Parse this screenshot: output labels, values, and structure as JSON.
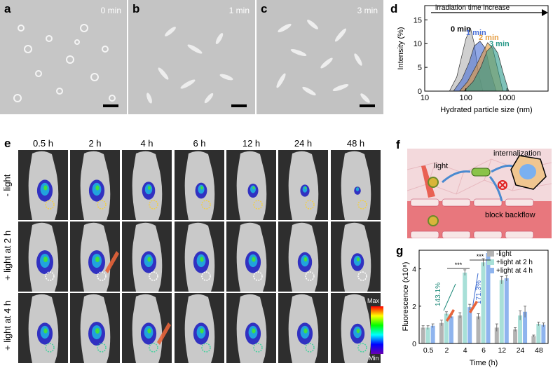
{
  "panel_a": {
    "label": "a",
    "time": "0 min"
  },
  "panel_b": {
    "label": "b",
    "time": "1 min"
  },
  "panel_c": {
    "label": "c",
    "time": "3 min"
  },
  "panel_d": {
    "label": "d",
    "arrow_text": "irradiation time increase",
    "chart_data": {
      "type": "area",
      "xlabel": "Hydrated particle size (nm)",
      "ylabel": "Intensity (%)",
      "xscale": "log",
      "xlim": [
        10,
        10000
      ],
      "ylim": [
        0,
        18
      ],
      "xticks": [
        "10",
        "100",
        "1000"
      ],
      "yticks": [
        "0",
        "5",
        "10",
        "15"
      ],
      "series": [
        {
          "name": "0 min",
          "color": "#b0b0b0",
          "x": [
            40,
            60,
            80,
            100,
            130,
            160,
            200,
            260
          ],
          "values": [
            0,
            3,
            7.5,
            11,
            13.2,
            10,
            4,
            0
          ]
        },
        {
          "name": "1 min",
          "color": "#4a6fd6",
          "x": [
            50,
            80,
            120,
            160,
            220,
            300,
            400,
            550
          ],
          "values": [
            0,
            2.5,
            6,
            9.5,
            10.5,
            9,
            4,
            0
          ]
        },
        {
          "name": "2 min",
          "color": "#e59a3c",
          "x": [
            70,
            110,
            170,
            250,
            340,
            450,
            600,
            800
          ],
          "values": [
            0,
            2,
            5,
            8,
            10.2,
            9,
            4.5,
            0
          ]
        },
        {
          "name": "3 min",
          "color": "#2a9a8a",
          "x": [
            90,
            150,
            230,
            330,
            450,
            600,
            800,
            1100
          ],
          "values": [
            0,
            2,
            5,
            8.5,
            9.6,
            8,
            4,
            0
          ]
        }
      ]
    }
  },
  "panel_e": {
    "label": "e",
    "times": [
      "0.5 h",
      "2 h",
      "4 h",
      "6 h",
      "12 h",
      "24 h",
      "48 h"
    ],
    "rows": [
      "- light",
      "+ light at 2 h",
      "+ light at 4 h"
    ],
    "colorbar_max": "Max",
    "colorbar_min": "Min"
  },
  "panel_f": {
    "label": "f",
    "light": "light",
    "internalization": "internalization",
    "block_backflow": "block backflow"
  },
  "panel_g": {
    "label": "g",
    "chart_data": {
      "type": "bar",
      "xlabel": "Time (h)",
      "ylabel": "Fluorescence (x10⁸)",
      "categories": [
        "0.5",
        "2",
        "4",
        "6",
        "12",
        "24",
        "48"
      ],
      "ylim": [
        0,
        5
      ],
      "yticks": [
        "0",
        "2",
        "4"
      ],
      "series": [
        {
          "name": "-light",
          "color": "#b3b3b3",
          "values": [
            0.85,
            1.1,
            1.5,
            1.45,
            0.85,
            0.75,
            0.4
          ],
          "errors": [
            0.1,
            0.15,
            0.15,
            0.15,
            0.2,
            0.1,
            0.05
          ]
        },
        {
          "name": "+light at 2 h",
          "color": "#a8e0d8",
          "values": [
            0.85,
            1.6,
            3.8,
            4.35,
            3.4,
            1.5,
            1.05
          ],
          "errors": [
            0.1,
            0.1,
            0.15,
            0.2,
            0.2,
            0.25,
            0.1
          ]
        },
        {
          "name": "+light at 4 h",
          "color": "#8fb4ee",
          "values": [
            0.95,
            1.45,
            1.95,
            4.85,
            3.5,
            1.7,
            1.0
          ],
          "errors": [
            0.1,
            0.1,
            0.15,
            0.1,
            0.15,
            0.3,
            0.1
          ]
        }
      ],
      "annotations": [
        "143.1%",
        "171.3%",
        "***",
        "***"
      ]
    }
  }
}
